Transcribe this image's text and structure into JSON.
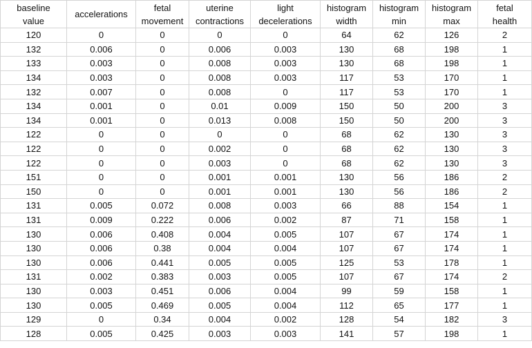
{
  "columns": [
    {
      "line1": "baseline",
      "line2": "value"
    },
    {
      "line1": "accelerations",
      "line2": ""
    },
    {
      "line1": "fetal",
      "line2": "movement"
    },
    {
      "line1": "uterine",
      "line2": "contractions"
    },
    {
      "line1": "light",
      "line2": "decelerations"
    },
    {
      "line1": "histogram",
      "line2": "width"
    },
    {
      "line1": "histogram",
      "line2": "min"
    },
    {
      "line1": "histogram",
      "line2": "max"
    },
    {
      "line1": "fetal",
      "line2": "health"
    }
  ],
  "rows": [
    [
      "120",
      "0",
      "0",
      "0",
      "0",
      "64",
      "62",
      "126",
      "2"
    ],
    [
      "132",
      "0.006",
      "0",
      "0.006",
      "0.003",
      "130",
      "68",
      "198",
      "1"
    ],
    [
      "133",
      "0.003",
      "0",
      "0.008",
      "0.003",
      "130",
      "68",
      "198",
      "1"
    ],
    [
      "134",
      "0.003",
      "0",
      "0.008",
      "0.003",
      "117",
      "53",
      "170",
      "1"
    ],
    [
      "132",
      "0.007",
      "0",
      "0.008",
      "0",
      "117",
      "53",
      "170",
      "1"
    ],
    [
      "134",
      "0.001",
      "0",
      "0.01",
      "0.009",
      "150",
      "50",
      "200",
      "3"
    ],
    [
      "134",
      "0.001",
      "0",
      "0.013",
      "0.008",
      "150",
      "50",
      "200",
      "3"
    ],
    [
      "122",
      "0",
      "0",
      "0",
      "0",
      "68",
      "62",
      "130",
      "3"
    ],
    [
      "122",
      "0",
      "0",
      "0.002",
      "0",
      "68",
      "62",
      "130",
      "3"
    ],
    [
      "122",
      "0",
      "0",
      "0.003",
      "0",
      "68",
      "62",
      "130",
      "3"
    ],
    [
      "151",
      "0",
      "0",
      "0.001",
      "0.001",
      "130",
      "56",
      "186",
      "2"
    ],
    [
      "150",
      "0",
      "0",
      "0.001",
      "0.001",
      "130",
      "56",
      "186",
      "2"
    ],
    [
      "131",
      "0.005",
      "0.072",
      "0.008",
      "0.003",
      "66",
      "88",
      "154",
      "1"
    ],
    [
      "131",
      "0.009",
      "0.222",
      "0.006",
      "0.002",
      "87",
      "71",
      "158",
      "1"
    ],
    [
      "130",
      "0.006",
      "0.408",
      "0.004",
      "0.005",
      "107",
      "67",
      "174",
      "1"
    ],
    [
      "130",
      "0.006",
      "0.38",
      "0.004",
      "0.004",
      "107",
      "67",
      "174",
      "1"
    ],
    [
      "130",
      "0.006",
      "0.441",
      "0.005",
      "0.005",
      "125",
      "53",
      "178",
      "1"
    ],
    [
      "131",
      "0.002",
      "0.383",
      "0.003",
      "0.005",
      "107",
      "67",
      "174",
      "2"
    ],
    [
      "130",
      "0.003",
      "0.451",
      "0.006",
      "0.004",
      "99",
      "59",
      "158",
      "1"
    ],
    [
      "130",
      "0.005",
      "0.469",
      "0.005",
      "0.004",
      "112",
      "65",
      "177",
      "1"
    ],
    [
      "129",
      "0",
      "0.34",
      "0.004",
      "0.002",
      "128",
      "54",
      "182",
      "3"
    ],
    [
      "128",
      "0.005",
      "0.425",
      "0.003",
      "0.003",
      "141",
      "57",
      "198",
      "1"
    ]
  ]
}
